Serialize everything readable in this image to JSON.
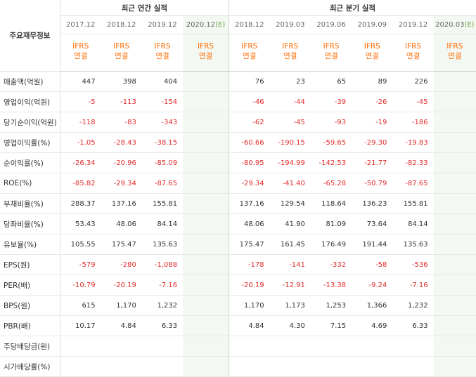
{
  "header": {
    "row_label": "주요재무정보",
    "annual_group": "최근 연간 실적",
    "quarter_group": "최근 분기 실적"
  },
  "columns": [
    {
      "period": "2017.12",
      "estimate": false
    },
    {
      "period": "2018.12",
      "estimate": false
    },
    {
      "period": "2019.12",
      "estimate": false
    },
    {
      "period": "2020.12",
      "estimate": true
    },
    {
      "period": "2018.12",
      "estimate": false
    },
    {
      "period": "2019.03",
      "estimate": false
    },
    {
      "period": "2019.06",
      "estimate": false
    },
    {
      "period": "2019.09",
      "estimate": false
    },
    {
      "period": "2019.12",
      "estimate": false
    },
    {
      "period": "2020.03",
      "estimate": true
    }
  ],
  "estimate_tag": "(E)",
  "accounting_std": {
    "line1": "IFRS",
    "line2": "연결"
  },
  "rows": [
    {
      "label": "매출액(억원)",
      "values": [
        "447",
        "398",
        "404",
        "",
        "76",
        "23",
        "65",
        "89",
        "226",
        ""
      ]
    },
    {
      "label": "영업이익(억원)",
      "values": [
        "-5",
        "-113",
        "-154",
        "",
        "-46",
        "-44",
        "-39",
        "-26",
        "-45",
        ""
      ]
    },
    {
      "label": "당기순이익(억원)",
      "values": [
        "-118",
        "-83",
        "-343",
        "",
        "-62",
        "-45",
        "-93",
        "-19",
        "-186",
        ""
      ]
    },
    {
      "label": "영업이익률(%)",
      "values": [
        "-1.05",
        "-28.43",
        "-38.15",
        "",
        "-60.66",
        "-190.15",
        "-59.65",
        "-29.30",
        "-19.83",
        ""
      ]
    },
    {
      "label": "순이익률(%)",
      "values": [
        "-26.34",
        "-20.96",
        "-85.09",
        "",
        "-80.95",
        "-194.99",
        "-142.53",
        "-21.77",
        "-82.33",
        ""
      ]
    },
    {
      "label": "ROE(%)",
      "values": [
        "-85.82",
        "-29.34",
        "-87.65",
        "",
        "-29.34",
        "-41.40",
        "-65.28",
        "-50.79",
        "-87.65",
        ""
      ]
    },
    {
      "label": "부채비율(%)",
      "values": [
        "288.37",
        "137.16",
        "155.81",
        "",
        "137.16",
        "129.54",
        "118.64",
        "136.23",
        "155.81",
        ""
      ]
    },
    {
      "label": "당좌비율(%)",
      "values": [
        "53.43",
        "48.06",
        "84.14",
        "",
        "48.06",
        "41.90",
        "81.09",
        "73.64",
        "84.14",
        ""
      ]
    },
    {
      "label": "유보율(%)",
      "values": [
        "105.55",
        "175.47",
        "135.63",
        "",
        "175.47",
        "161.45",
        "176.49",
        "191.44",
        "135.63",
        ""
      ]
    },
    {
      "label": "EPS(원)",
      "values": [
        "-579",
        "-280",
        "-1,088",
        "",
        "-178",
        "-141",
        "-332",
        "-58",
        "-536",
        ""
      ]
    },
    {
      "label": "PER(배)",
      "values": [
        "-10.79",
        "-20.19",
        "-7.16",
        "",
        "-20.19",
        "-12.91",
        "-13.38",
        "-9.24",
        "-7.16",
        ""
      ]
    },
    {
      "label": "BPS(원)",
      "values": [
        "615",
        "1,170",
        "1,232",
        "",
        "1,170",
        "1,173",
        "1,253",
        "1,366",
        "1,232",
        ""
      ]
    },
    {
      "label": "PBR(배)",
      "values": [
        "10.17",
        "4.84",
        "6.33",
        "",
        "4.84",
        "4.30",
        "7.15",
        "4.69",
        "6.33",
        ""
      ]
    },
    {
      "label": "주당배당금(원)",
      "values": [
        "",
        "",
        "",
        "",
        "",
        "",
        "",
        "",
        "",
        ""
      ]
    },
    {
      "label": "시가배당률(%)",
      "values": [
        "",
        "",
        "",
        "",
        "",
        "",
        "",
        "",
        "",
        ""
      ]
    }
  ],
  "colors": {
    "negative": "#e42b2b",
    "ifrs": "#ff6a00",
    "estimate_bg": "#f4f8f2",
    "estimate_tag": "#6aa84f"
  }
}
